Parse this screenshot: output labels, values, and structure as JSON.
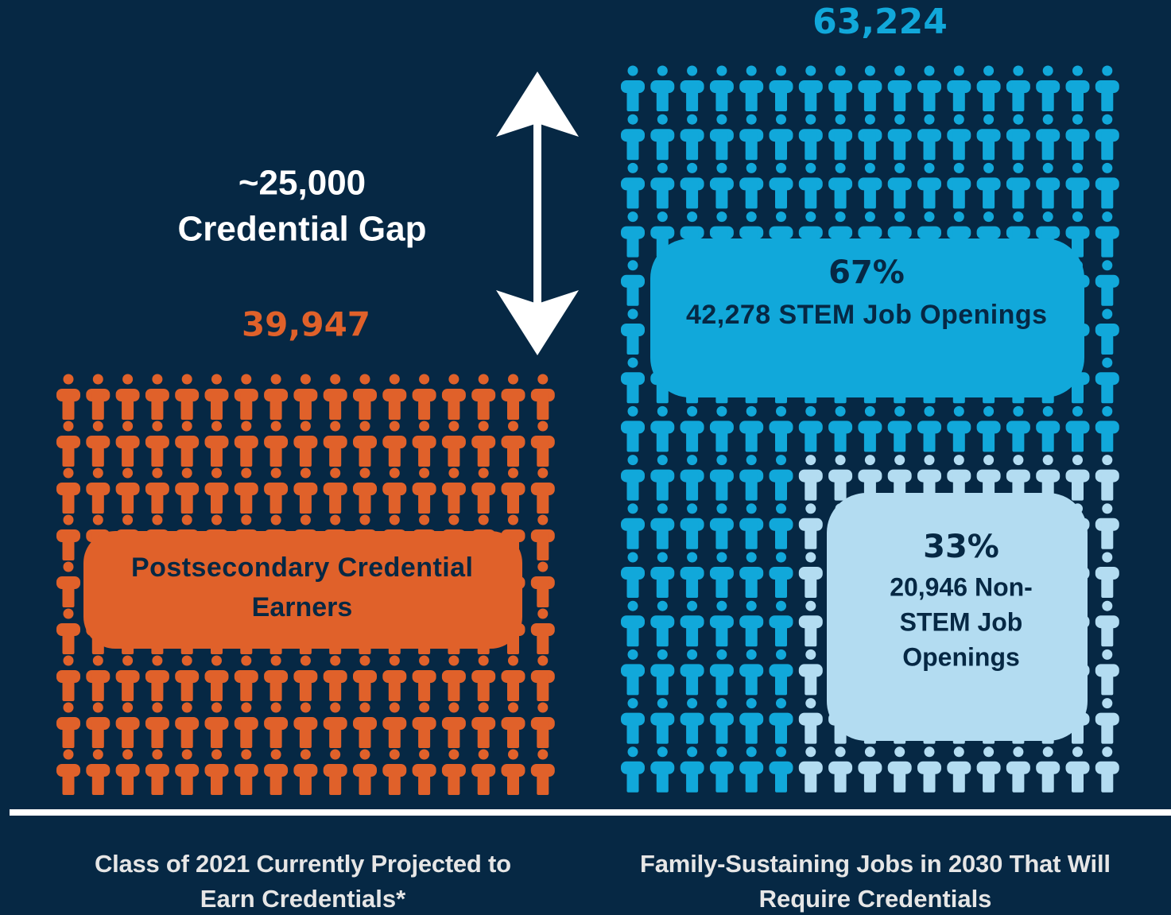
{
  "left": {
    "total": "39,947",
    "label_lines": [
      "Postsecondary Credential",
      "Earners"
    ],
    "caption_lines": [
      "Class of 2021 Currently Projected to",
      "Earn Credentials*"
    ]
  },
  "gap": {
    "value": "~25,000",
    "label": "Credential Gap"
  },
  "right": {
    "total": "63,224",
    "stem": {
      "percent": "67%",
      "label": "42,278 STEM Job Openings"
    },
    "non_stem": {
      "percent": "33%",
      "label_lines": [
        "20,946 Non-",
        "STEM Job",
        "Openings"
      ]
    },
    "caption_lines": [
      "Family-Sustaining Jobs in 2030 That Will",
      "Require Credentials"
    ]
  }
}
